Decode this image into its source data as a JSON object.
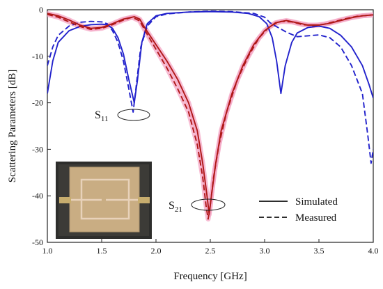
{
  "chart_data": {
    "type": "line",
    "title": "",
    "xlabel": "Frequency [GHz]",
    "ylabel": "Scattering Parameters [dB]",
    "xlim": [
      1.0,
      4.0
    ],
    "ylim": [
      -50,
      0
    ],
    "xticks": [
      "1.0",
      "1.5",
      "2.0",
      "2.5",
      "3.0",
      "3.5",
      "4.0"
    ],
    "yticks": [
      "0",
      "-10",
      "-20",
      "-30",
      "-40",
      "-50"
    ],
    "grid": false,
    "legend": {
      "placement": "bottom-right",
      "entries": [
        {
          "label": "Simulated",
          "style": "solid"
        },
        {
          "label": "Measured",
          "style": "dashed"
        }
      ]
    },
    "annotations": [
      {
        "base": "S",
        "sub": "11",
        "x": 1.8,
        "y": -18
      },
      {
        "base": "S",
        "sub": "21",
        "x": 2.48,
        "y": -40.5
      }
    ],
    "inset": "photo of fabricated microstrip filter",
    "colors": {
      "s11": "#2222cc",
      "s21": "#b01818",
      "s21_glow": "#f4a6c4"
    },
    "series": [
      {
        "id": "s11_sim",
        "style": "solid",
        "color": "#2222cc",
        "points": [
          [
            1.0,
            -18
          ],
          [
            1.05,
            -11
          ],
          [
            1.1,
            -7
          ],
          [
            1.2,
            -4.5
          ],
          [
            1.3,
            -3.6
          ],
          [
            1.4,
            -3.2
          ],
          [
            1.5,
            -3.1
          ],
          [
            1.55,
            -3.2
          ],
          [
            1.6,
            -4
          ],
          [
            1.65,
            -6
          ],
          [
            1.7,
            -9.5
          ],
          [
            1.75,
            -15
          ],
          [
            1.8,
            -20
          ],
          [
            1.83,
            -15
          ],
          [
            1.87,
            -7
          ],
          [
            1.92,
            -3
          ],
          [
            2.0,
            -1.3
          ],
          [
            2.1,
            -0.8
          ],
          [
            2.3,
            -0.5
          ],
          [
            2.5,
            -0.4
          ],
          [
            2.7,
            -0.5
          ],
          [
            2.85,
            -0.8
          ],
          [
            2.95,
            -1.5
          ],
          [
            3.02,
            -3
          ],
          [
            3.07,
            -6
          ],
          [
            3.11,
            -11
          ],
          [
            3.15,
            -18
          ],
          [
            3.19,
            -12
          ],
          [
            3.25,
            -7
          ],
          [
            3.3,
            -5
          ],
          [
            3.4,
            -3.8
          ],
          [
            3.5,
            -3.5
          ],
          [
            3.6,
            -4
          ],
          [
            3.7,
            -5.5
          ],
          [
            3.8,
            -8
          ],
          [
            3.9,
            -12
          ],
          [
            3.96,
            -16
          ],
          [
            4.0,
            -19
          ]
        ]
      },
      {
        "id": "s11_meas",
        "style": "dashed",
        "color": "#2222cc",
        "points": [
          [
            1.0,
            -12
          ],
          [
            1.05,
            -8
          ],
          [
            1.1,
            -5.5
          ],
          [
            1.2,
            -3.5
          ],
          [
            1.3,
            -2.7
          ],
          [
            1.4,
            -2.5
          ],
          [
            1.5,
            -2.6
          ],
          [
            1.55,
            -3
          ],
          [
            1.6,
            -4.5
          ],
          [
            1.65,
            -7
          ],
          [
            1.7,
            -11
          ],
          [
            1.75,
            -17
          ],
          [
            1.79,
            -22
          ],
          [
            1.82,
            -16
          ],
          [
            1.86,
            -8
          ],
          [
            1.92,
            -3.5
          ],
          [
            2.0,
            -1.5
          ],
          [
            2.1,
            -0.9
          ],
          [
            2.3,
            -0.5
          ],
          [
            2.5,
            -0.3
          ],
          [
            2.7,
            -0.4
          ],
          [
            2.9,
            -0.8
          ],
          [
            3.0,
            -1.6
          ],
          [
            3.05,
            -2.8
          ],
          [
            3.1,
            -3.5
          ],
          [
            3.2,
            -4.8
          ],
          [
            3.3,
            -5.8
          ],
          [
            3.4,
            -5.6
          ],
          [
            3.5,
            -5.4
          ],
          [
            3.6,
            -6
          ],
          [
            3.7,
            -8
          ],
          [
            3.8,
            -12
          ],
          [
            3.9,
            -18
          ],
          [
            3.95,
            -27
          ],
          [
            3.98,
            -33
          ],
          [
            4.0,
            -30
          ]
        ]
      },
      {
        "id": "s21_sim",
        "style": "solid",
        "color": "#b01818",
        "points": [
          [
            1.0,
            -0.8
          ],
          [
            1.1,
            -1.3
          ],
          [
            1.2,
            -2.2
          ],
          [
            1.3,
            -3.3
          ],
          [
            1.4,
            -4
          ],
          [
            1.5,
            -3.8
          ],
          [
            1.6,
            -3
          ],
          [
            1.7,
            -2
          ],
          [
            1.8,
            -1.5
          ],
          [
            1.85,
            -2
          ],
          [
            1.9,
            -4
          ],
          [
            2.0,
            -7.5
          ],
          [
            2.1,
            -11
          ],
          [
            2.2,
            -15
          ],
          [
            2.3,
            -20
          ],
          [
            2.38,
            -26
          ],
          [
            2.43,
            -33
          ],
          [
            2.47,
            -40
          ],
          [
            2.49,
            -44
          ],
          [
            2.51,
            -40
          ],
          [
            2.55,
            -33
          ],
          [
            2.6,
            -26
          ],
          [
            2.7,
            -18
          ],
          [
            2.8,
            -12
          ],
          [
            2.9,
            -7.5
          ],
          [
            3.0,
            -4.5
          ],
          [
            3.1,
            -2.8
          ],
          [
            3.2,
            -2.3
          ],
          [
            3.3,
            -2.8
          ],
          [
            3.4,
            -3.3
          ],
          [
            3.5,
            -3.3
          ],
          [
            3.6,
            -2.9
          ],
          [
            3.7,
            -2.3
          ],
          [
            3.8,
            -1.7
          ],
          [
            3.9,
            -1.3
          ],
          [
            4.0,
            -1.1
          ]
        ]
      },
      {
        "id": "s21_meas",
        "style": "dashed",
        "color": "#b01818",
        "points": [
          [
            1.0,
            -1
          ],
          [
            1.1,
            -1.6
          ],
          [
            1.2,
            -2.6
          ],
          [
            1.3,
            -3.6
          ],
          [
            1.4,
            -4.2
          ],
          [
            1.5,
            -4
          ],
          [
            1.6,
            -3.2
          ],
          [
            1.7,
            -2.2
          ],
          [
            1.78,
            -1.6
          ],
          [
            1.85,
            -2.4
          ],
          [
            1.9,
            -4.5
          ],
          [
            2.0,
            -8.5
          ],
          [
            2.1,
            -12.5
          ],
          [
            2.2,
            -17
          ],
          [
            2.3,
            -22
          ],
          [
            2.38,
            -29
          ],
          [
            2.43,
            -36
          ],
          [
            2.46,
            -42
          ],
          [
            2.48,
            -45
          ],
          [
            2.5,
            -42
          ],
          [
            2.53,
            -36
          ],
          [
            2.58,
            -29
          ],
          [
            2.65,
            -22
          ],
          [
            2.75,
            -15
          ],
          [
            2.85,
            -10
          ],
          [
            2.95,
            -6
          ],
          [
            3.05,
            -3.5
          ],
          [
            3.15,
            -2.5
          ],
          [
            3.25,
            -2.6
          ],
          [
            3.35,
            -3.2
          ],
          [
            3.45,
            -3.4
          ],
          [
            3.55,
            -3.1
          ],
          [
            3.65,
            -2.5
          ],
          [
            3.75,
            -1.9
          ],
          [
            3.85,
            -1.4
          ],
          [
            4.0,
            -1.1
          ]
        ]
      }
    ]
  }
}
